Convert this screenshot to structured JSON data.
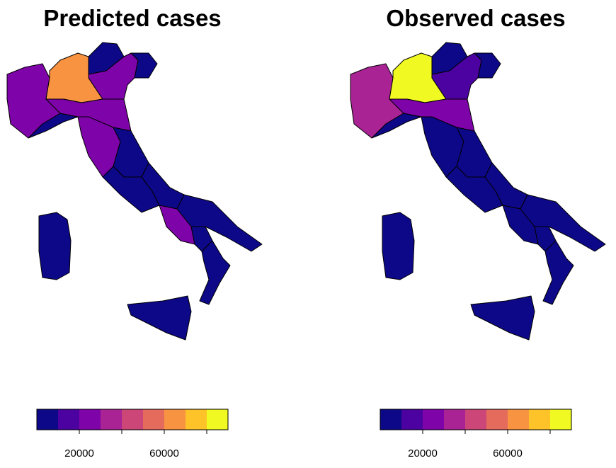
{
  "chart_data": {
    "type": "choropleth",
    "panels": [
      {
        "title": "Predicted cases",
        "values": [
          25000,
          68000,
          5000,
          28000,
          4000,
          8000,
          27000,
          22000,
          6000,
          7000,
          5000,
          24000,
          8000,
          2000,
          3000,
          4000,
          2000
        ]
      },
      {
        "title": "Observed cases",
        "values": [
          30000,
          88000,
          6000,
          18000,
          3000,
          8000,
          27000,
          9000,
          7000,
          6000,
          3000,
          4000,
          4000,
          400,
          1000,
          3000,
          1300
        ]
      }
    ],
    "colors": [
      "#0d0887",
      "#4c02a1",
      "#7e03a8",
      "#a92395",
      "#cc4778",
      "#e56b5d",
      "#f89441",
      "#fdc328",
      "#f0f921"
    ],
    "lim": [
      0,
      90000
    ],
    "ticks": [
      20000,
      60000
    ],
    "minor_ticks": [
      40000,
      80000
    ]
  }
}
